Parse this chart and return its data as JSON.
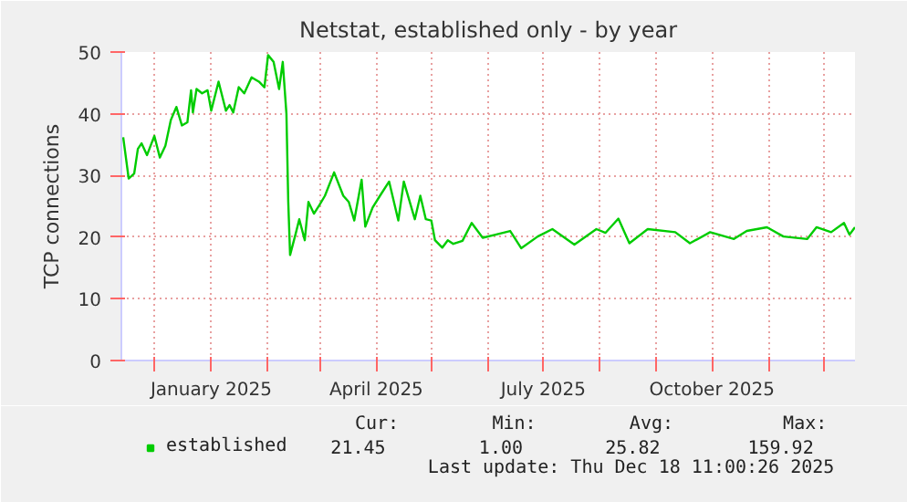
{
  "chart_data": {
    "type": "line",
    "title": "Netstat, established only - by year",
    "ylabel": "TCP connections",
    "x": [
      "2024-11-14",
      "2024-11-17",
      "2024-11-20",
      "2024-11-22",
      "2024-11-24",
      "2024-11-27",
      "2024-12-01",
      "2024-12-04",
      "2024-12-07",
      "2024-12-10",
      "2024-12-13",
      "2024-12-16",
      "2024-12-19",
      "2024-12-21",
      "2024-12-22",
      "2024-12-24",
      "2024-12-27",
      "2024-12-30",
      "2025-01-01",
      "2025-01-05",
      "2025-01-09",
      "2025-01-11",
      "2025-01-13",
      "2025-01-16",
      "2025-01-19",
      "2025-01-23",
      "2025-01-27",
      "2025-01-30",
      "2025-02-01",
      "2025-02-04",
      "2025-02-07",
      "2025-02-09",
      "2025-02-11",
      "2025-02-12",
      "2025-02-13",
      "2025-02-16",
      "2025-02-18",
      "2025-02-21",
      "2025-02-23",
      "2025-02-26",
      "2025-03-01",
      "2025-03-04",
      "2025-03-09",
      "2025-03-14",
      "2025-03-17",
      "2025-03-20",
      "2025-03-24",
      "2025-03-26",
      "2025-03-30",
      "2025-04-03",
      "2025-04-08",
      "2025-04-13",
      "2025-04-16",
      "2025-04-22",
      "2025-04-25",
      "2025-04-28",
      "2025-05-01",
      "2025-05-03",
      "2025-05-07",
      "2025-05-10",
      "2025-05-13",
      "2025-05-18",
      "2025-05-23",
      "2025-05-29",
      "2025-06-05",
      "2025-06-13",
      "2025-06-19",
      "2025-06-28",
      "2025-07-06",
      "2025-07-18",
      "2025-07-30",
      "2025-08-04",
      "2025-08-11",
      "2025-08-17",
      "2025-08-27",
      "2025-09-11",
      "2025-09-19",
      "2025-09-30",
      "2025-10-13",
      "2025-10-20",
      "2025-10-31",
      "2025-11-09",
      "2025-11-22",
      "2025-11-27",
      "2025-12-05",
      "2025-12-12",
      "2025-12-15",
      "2025-12-18"
    ],
    "series": [
      {
        "name": "established",
        "color": "#00cc00",
        "values": [
          36.2,
          29.5,
          30.3,
          34.3,
          35.2,
          33.3,
          36.4,
          32.9,
          34.8,
          39,
          41.1,
          38.1,
          38.6,
          43.8,
          40.2,
          44,
          43.3,
          43.8,
          40.5,
          45.2,
          40.5,
          41.4,
          40.2,
          44.3,
          43.3,
          45.9,
          45.2,
          44.3,
          49.5,
          48.4,
          44,
          48.4,
          40,
          25.7,
          17.1,
          20.5,
          22.9,
          19.5,
          25.7,
          23.8,
          25.2,
          26.7,
          30.5,
          26.7,
          25.7,
          22.7,
          29.3,
          21.7,
          24.8,
          26.7,
          29,
          22.7,
          29,
          22.9,
          26.7,
          22.9,
          22.7,
          19.5,
          18.3,
          19.5,
          18.9,
          19.4,
          22.3,
          19.9,
          20.4,
          21,
          18.2,
          20.1,
          21.3,
          18.8,
          21.3,
          20.7,
          23,
          19,
          21.3,
          20.8,
          19,
          20.8,
          19.7,
          21,
          21.6,
          20.1,
          19.7,
          21.6,
          20.8,
          22.3,
          20.4,
          21.6
        ]
      }
    ],
    "xlim": [
      "2024-11-13",
      "2025-12-18"
    ],
    "xticks": [
      {
        "value": "2024-12-01",
        "label": null
      },
      {
        "value": "2025-01-01",
        "label": "January 2025"
      },
      {
        "value": "2025-02-01",
        "label": null
      },
      {
        "value": "2025-03-01",
        "label": null
      },
      {
        "value": "2025-04-01",
        "label": "April 2025"
      },
      {
        "value": "2025-05-01",
        "label": null
      },
      {
        "value": "2025-06-01",
        "label": null
      },
      {
        "value": "2025-07-01",
        "label": "July 2025"
      },
      {
        "value": "2025-08-01",
        "label": null
      },
      {
        "value": "2025-09-01",
        "label": null
      },
      {
        "value": "2025-10-01",
        "label": "October 2025"
      },
      {
        "value": "2025-11-01",
        "label": null
      },
      {
        "value": "2025-12-01",
        "label": null
      }
    ],
    "ylim": [
      0,
      50
    ],
    "yticks": [
      0,
      10,
      20,
      30,
      40,
      50
    ],
    "grid": true,
    "legend": "bottom",
    "marker": "none",
    "line_style": "solid",
    "annotations": [
      "Cur:",
      "Min:",
      "Avg:",
      "Max:",
      "21.45",
      "1.00",
      "25.82",
      "159.92",
      "Last update: Thu Dec 18 11:00:26 2025"
    ]
  }
}
